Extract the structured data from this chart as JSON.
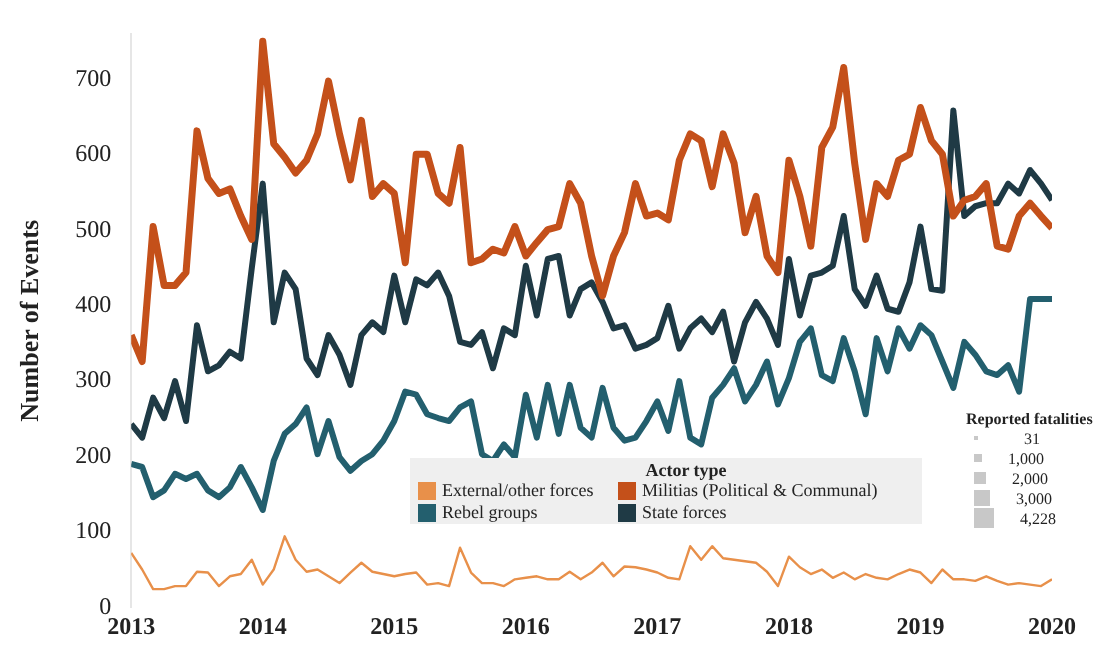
{
  "chart_data": {
    "type": "line",
    "ylabel": "Number of Events",
    "legend_title": "Actor type",
    "legend": "bottom",
    "grid": false,
    "marker": "none",
    "line_style": "solid",
    "xlim": [
      "2013-01",
      "2020-01"
    ],
    "xticks": [
      "2013",
      "2014",
      "2015",
      "2016",
      "2017",
      "2018",
      "2019",
      "2020"
    ],
    "ylim": [
      0,
      760
    ],
    "yticks": [
      0,
      100,
      200,
      300,
      400,
      500,
      600,
      700
    ],
    "x": [
      "2013-01",
      "2013-02",
      "2013-03",
      "2013-04",
      "2013-05",
      "2013-06",
      "2013-07",
      "2013-08",
      "2013-09",
      "2013-10",
      "2013-11",
      "2013-12",
      "2014-01",
      "2014-02",
      "2014-03",
      "2014-04",
      "2014-05",
      "2014-06",
      "2014-07",
      "2014-08",
      "2014-09",
      "2014-10",
      "2014-11",
      "2014-12",
      "2015-01",
      "2015-02",
      "2015-03",
      "2015-04",
      "2015-05",
      "2015-06",
      "2015-07",
      "2015-08",
      "2015-09",
      "2015-10",
      "2015-11",
      "2015-12",
      "2016-01",
      "2016-02",
      "2016-03",
      "2016-04",
      "2016-05",
      "2016-06",
      "2016-07",
      "2016-08",
      "2016-09",
      "2016-10",
      "2016-11",
      "2016-12",
      "2017-01",
      "2017-02",
      "2017-03",
      "2017-04",
      "2017-05",
      "2017-06",
      "2017-07",
      "2017-08",
      "2017-09",
      "2017-10",
      "2017-11",
      "2017-12",
      "2018-01",
      "2018-02",
      "2018-03",
      "2018-04",
      "2018-05",
      "2018-06",
      "2018-07",
      "2018-08",
      "2018-09",
      "2018-10",
      "2018-11",
      "2018-12",
      "2019-01",
      "2019-02",
      "2019-03",
      "2019-04",
      "2019-05",
      "2019-06",
      "2019-07",
      "2019-08",
      "2019-09",
      "2019-10",
      "2019-11",
      "2019-12",
      "2020-01"
    ],
    "series": [
      {
        "name": "External/other forces",
        "color": "#e8904a",
        "values": [
          72,
          50,
          24,
          24,
          28,
          28,
          47,
          46,
          28,
          41,
          44,
          63,
          30,
          50,
          94,
          63,
          47,
          50,
          41,
          32,
          46,
          59,
          47,
          44,
          41,
          44,
          46,
          30,
          32,
          28,
          79,
          46,
          32,
          32,
          28,
          37,
          39,
          41,
          37,
          37,
          47,
          37,
          46,
          59,
          41,
          54,
          53,
          50,
          46,
          39,
          37,
          81,
          63,
          81,
          65,
          63,
          61,
          59,
          47,
          28,
          67,
          53,
          44,
          50,
          39,
          46,
          37,
          44,
          39,
          37,
          44,
          50,
          46,
          32,
          50,
          37,
          37,
          35,
          41,
          35,
          30,
          32,
          30,
          28,
          37
        ]
      },
      {
        "name": "Rebel groups",
        "color": "#235f6e",
        "values": [
          190,
          186,
          146,
          155,
          177,
          170,
          177,
          155,
          146,
          159,
          186,
          159,
          129,
          194,
          230,
          243,
          265,
          203,
          247,
          199,
          181,
          194,
          203,
          221,
          247,
          286,
          282,
          256,
          251,
          247,
          265,
          273,
          203,
          194,
          216,
          199,
          282,
          225,
          295,
          230,
          295,
          238,
          225,
          291,
          238,
          221,
          225,
          247,
          273,
          234,
          300,
          225,
          216,
          278,
          295,
          317,
          273,
          295,
          326,
          269,
          304,
          352,
          370,
          308,
          300,
          357,
          313,
          256,
          357,
          313,
          370,
          343,
          374,
          361,
          326,
          291,
          352,
          335,
          313,
          308,
          321,
          286,
          409,
          409,
          409
        ]
      },
      {
        "name": "Militias (Political & Communal)",
        "color": "#c4501a",
        "values": [
          361,
          326,
          505,
          427,
          427,
          444,
          632,
          569,
          549,
          555,
          519,
          488,
          751,
          615,
          597,
          576,
          593,
          628,
          698,
          628,
          567,
          646,
          545,
          562,
          549,
          457,
          601,
          601,
          549,
          536,
          610,
          457,
          462,
          475,
          470,
          505,
          466,
          484,
          501,
          505,
          562,
          536,
          466,
          413,
          466,
          497,
          562,
          519,
          523,
          514,
          593,
          628,
          619,
          558,
          628,
          589,
          497,
          545,
          466,
          444,
          593,
          545,
          479,
          610,
          637,
          716,
          589,
          488,
          562,
          545,
          593,
          601,
          663,
          619,
          601,
          519,
          540,
          545,
          562,
          479,
          475,
          519,
          536,
          519,
          503
        ]
      },
      {
        "name": "State forces",
        "color": "#1f3a45",
        "values": [
          243,
          225,
          278,
          251,
          300,
          247,
          374,
          313,
          321,
          339,
          330,
          450,
          562,
          378,
          444,
          422,
          330,
          308,
          361,
          335,
          295,
          361,
          378,
          365,
          440,
          378,
          435,
          427,
          444,
          413,
          352,
          348,
          365,
          317,
          370,
          361,
          453,
          387,
          462,
          466,
          387,
          422,
          431,
          405,
          370,
          374,
          343,
          348,
          357,
          400,
          343,
          370,
          383,
          365,
          392,
          326,
          378,
          405,
          383,
          348,
          462,
          387,
          440,
          444,
          453,
          519,
          422,
          400,
          440,
          396,
          392,
          431,
          505,
          422,
          420,
          659,
          519,
          532,
          536,
          536,
          562,
          549,
          580,
          562,
          540
        ]
      }
    ],
    "annotations": [
      "Reported fatalities",
      "31",
      "1,000",
      "2,000",
      "3,000",
      "4,228"
    ]
  }
}
